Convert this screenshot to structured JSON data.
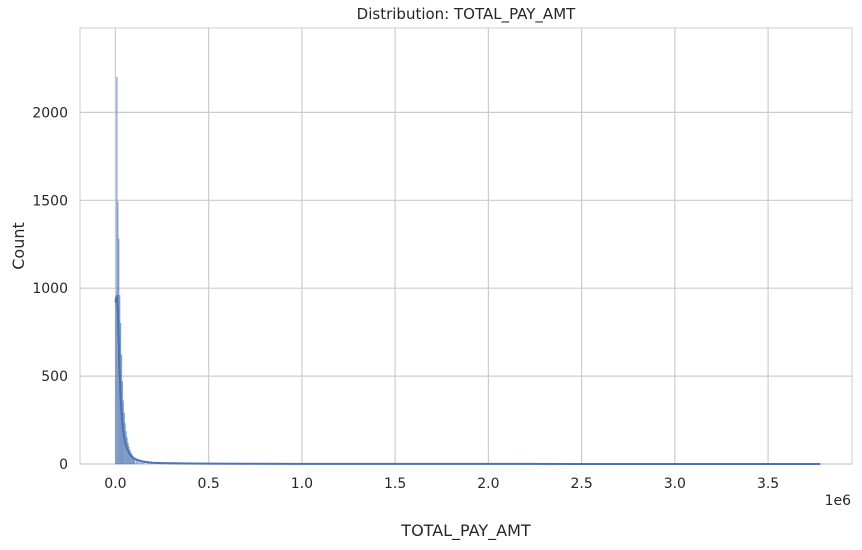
{
  "chart_data": {
    "type": "histogram",
    "title": "Distribution: TOTAL_PAY_AMT",
    "xlabel": "TOTAL_PAY_AMT",
    "ylabel": "Count",
    "x_offset_label": "1e6",
    "xlim": [
      -0.19,
      3.95
    ],
    "ylim": [
      0,
      2480
    ],
    "xticks": [
      0.0,
      0.5,
      1.0,
      1.5,
      2.0,
      2.5,
      3.0,
      3.5
    ],
    "xtick_labels": [
      "0.0",
      "0.5",
      "1.0",
      "1.5",
      "2.0",
      "2.5",
      "3.0",
      "3.5"
    ],
    "yticks": [
      0,
      500,
      1000,
      1500,
      2000
    ],
    "ytick_labels": [
      "0",
      "500",
      "1000",
      "1500",
      "2000"
    ],
    "grid": true,
    "bar_color": "#4c72b0",
    "kde_color": "#4c72b0",
    "bars": [
      {
        "x": 0.0,
        "count": 950
      },
      {
        "x": 0.005,
        "count": 2200
      },
      {
        "x": 0.01,
        "count": 1490
      },
      {
        "x": 0.015,
        "count": 1280
      },
      {
        "x": 0.02,
        "count": 960
      },
      {
        "x": 0.025,
        "count": 800
      },
      {
        "x": 0.03,
        "count": 620
      },
      {
        "x": 0.035,
        "count": 470
      },
      {
        "x": 0.04,
        "count": 360
      },
      {
        "x": 0.045,
        "count": 290
      },
      {
        "x": 0.05,
        "count": 230
      },
      {
        "x": 0.055,
        "count": 185
      },
      {
        "x": 0.06,
        "count": 150
      },
      {
        "x": 0.065,
        "count": 120
      },
      {
        "x": 0.07,
        "count": 98
      },
      {
        "x": 0.075,
        "count": 80
      },
      {
        "x": 0.08,
        "count": 66
      },
      {
        "x": 0.085,
        "count": 55
      },
      {
        "x": 0.09,
        "count": 46
      },
      {
        "x": 0.095,
        "count": 38
      },
      {
        "x": 0.1,
        "count": 32
      },
      {
        "x": 0.11,
        "count": 26
      },
      {
        "x": 0.12,
        "count": 21
      },
      {
        "x": 0.13,
        "count": 17
      },
      {
        "x": 0.14,
        "count": 14
      },
      {
        "x": 0.15,
        "count": 11
      },
      {
        "x": 0.17,
        "count": 9
      },
      {
        "x": 0.19,
        "count": 7
      },
      {
        "x": 0.22,
        "count": 5
      },
      {
        "x": 0.26,
        "count": 4
      },
      {
        "x": 0.3,
        "count": 3
      },
      {
        "x": 0.35,
        "count": 2
      },
      {
        "x": 0.42,
        "count": 2
      },
      {
        "x": 0.5,
        "count": 1
      },
      {
        "x": 0.6,
        "count": 1
      }
    ],
    "kde": {
      "x": [
        0.0,
        0.005,
        0.01,
        0.015,
        0.02,
        0.025,
        0.03,
        0.035,
        0.04,
        0.05,
        0.06,
        0.07,
        0.08,
        0.09,
        0.1,
        0.12,
        0.14,
        0.16,
        0.18,
        0.2,
        0.25,
        0.3,
        0.4,
        0.5,
        0.7,
        1.0,
        1.5,
        2.0,
        2.5,
        3.0,
        3.5,
        3.78
      ],
      "y": [
        920,
        945,
        960,
        820,
        620,
        460,
        340,
        260,
        200,
        130,
        92,
        68,
        52,
        40,
        32,
        22,
        16,
        12,
        9,
        7,
        5,
        4,
        3,
        2,
        1.5,
        1,
        0.6,
        0.4,
        0.3,
        0.2,
        0.15,
        0.1
      ]
    }
  }
}
